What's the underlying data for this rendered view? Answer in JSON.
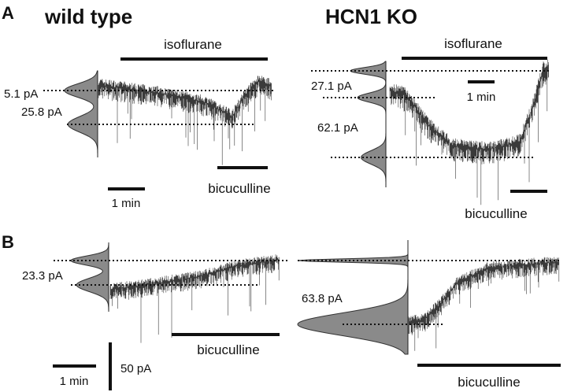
{
  "panel_a": {
    "label": "A",
    "wild_type": {
      "title": "wild type",
      "drug_1": "isoflurane",
      "amplitudes": [
        "5.1 pA",
        "25.8 pA"
      ],
      "drug_2": "bicuculline",
      "time_scale": "1 min"
    },
    "hcn1_ko": {
      "title": "HCN1 KO",
      "drug_1": "isoflurane",
      "amplitudes": [
        "27.1 pA",
        "62.1 pA"
      ],
      "time_scale": "1 min",
      "drug_2": "bicuculline"
    }
  },
  "panel_b": {
    "label": "B",
    "wild_type": {
      "amplitude": "23.3 pA",
      "drug": "bicuculline",
      "time_scale": "1 min",
      "current_scale": "50 pA"
    },
    "hcn1_ko": {
      "amplitude": "63.8 pA",
      "drug": "bicuculline"
    }
  }
}
